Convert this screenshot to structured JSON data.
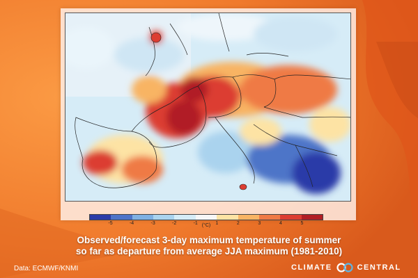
{
  "title": {
    "line1": "Observed/forecast 3-day maximum temperature of summer",
    "line2": "so far as departure from average JJA maximum (1981-2010)"
  },
  "credit": "Data: ECMWF/KNMI",
  "brand": {
    "left": "CLIMATE",
    "right": "CENTRAL",
    "logo_icon": "climate-central-logo-icon"
  },
  "legend": {
    "unit": "(°C)",
    "ticks": [
      "-5",
      "-4",
      "-3",
      "-2",
      "-1",
      "1",
      "2",
      "3",
      "4",
      "5"
    ],
    "colors": [
      "#2b3ba8",
      "#4e74c8",
      "#7fb0e2",
      "#aad3ee",
      "#d6ecf7",
      "#f7f7f7",
      "#fde3a4",
      "#f8b464",
      "#ef7a45",
      "#dc3d32",
      "#b11e25"
    ]
  },
  "colors": {
    "background_orange": "#f07a2c",
    "panel": "#fff0e8",
    "text": "#ffffff"
  }
}
